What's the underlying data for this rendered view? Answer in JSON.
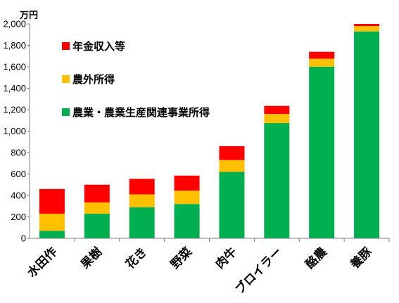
{
  "chart_data": {
    "type": "bar",
    "stacked": true,
    "unit_label": "万円",
    "ylim": [
      0,
      2000
    ],
    "yticks": [
      0,
      200,
      400,
      600,
      800,
      1000,
      1200,
      1400,
      1600,
      1800,
      2000
    ],
    "ytick_labels": [
      "0",
      "200",
      "400",
      "600",
      "800",
      "1,000",
      "1,200",
      "1,400",
      "1,600",
      "1,800",
      "2,000"
    ],
    "grid": false,
    "legend_position": "top-left",
    "categories": [
      "水田作",
      "果樹",
      "花き",
      "野菜",
      "肉牛",
      "ブロイラー",
      "酪農",
      "養豚"
    ],
    "series": [
      {
        "name": "農業・農業生産関連事業所得",
        "color": "#00b050",
        "values": [
          70,
          230,
          290,
          320,
          620,
          1075,
          1600,
          1930
        ]
      },
      {
        "name": "農外所得",
        "color": "#ffc000",
        "values": [
          160,
          105,
          120,
          125,
          110,
          85,
          75,
          50
        ]
      },
      {
        "name": "年金収入等",
        "color": "#ff0000",
        "values": [
          230,
          165,
          145,
          140,
          130,
          75,
          65,
          20
        ]
      }
    ],
    "legend_order": [
      "年金収入等",
      "農外所得",
      "農業・農業生産関連事業所得"
    ]
  }
}
